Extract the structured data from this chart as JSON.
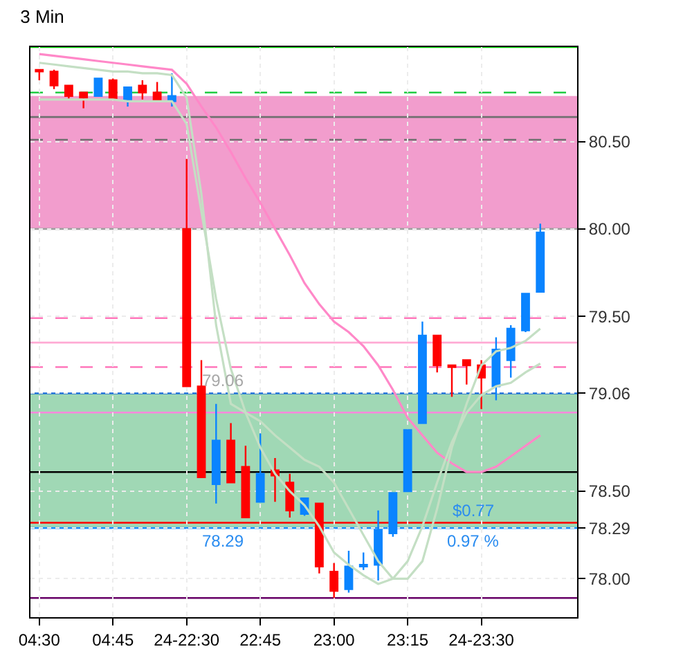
{
  "chart_data": {
    "type": "candlestick",
    "title": "3 Min",
    "categories": [
      "04:30",
      null,
      null,
      null,
      null,
      "04:45",
      null,
      null,
      null,
      null,
      "24-22:30",
      null,
      null,
      null,
      null,
      "22:45",
      null,
      null,
      null,
      null,
      "23:00",
      null,
      null,
      null,
      null,
      "23:15",
      null,
      null,
      null,
      null,
      "24-23:30",
      null,
      null,
      null,
      null
    ],
    "series": [
      {
        "type": "line",
        "color": "#ff88c8",
        "values": [
          81.0,
          80.99,
          80.98,
          80.97,
          80.96,
          80.95,
          80.94,
          80.93,
          80.92,
          80.91,
          80.83,
          80.7,
          80.58,
          80.44,
          80.29,
          80.15,
          80.0,
          79.85,
          79.69,
          79.57,
          79.47,
          79.41,
          79.33,
          79.22,
          79.08,
          78.92,
          78.82,
          78.72,
          78.66,
          78.61,
          78.61,
          78.64,
          78.7,
          78.76,
          78.82
        ]
      },
      {
        "type": "line",
        "color": "#c4dfc4",
        "values": [
          80.95,
          80.94,
          80.93,
          80.92,
          80.91,
          80.9,
          80.9,
          80.89,
          80.89,
          80.88,
          80.75,
          80.2,
          79.45,
          79.0,
          78.95,
          78.9,
          78.82,
          78.75,
          78.68,
          78.64,
          78.55,
          78.4,
          78.25,
          78.1,
          78.0,
          78.0,
          78.1,
          78.4,
          78.75,
          79.0,
          79.22,
          79.3,
          79.32,
          79.36,
          79.43
        ]
      },
      {
        "type": "line",
        "color": "#c4dfc4",
        "values": [
          80.74,
          80.74,
          80.74,
          80.74,
          80.74,
          80.74,
          80.73,
          80.73,
          80.73,
          80.73,
          80.6,
          80.1,
          79.6,
          79.2,
          78.95,
          78.75,
          78.6,
          78.5,
          78.42,
          78.3,
          78.15,
          78.08,
          78.02,
          77.97,
          78.0,
          78.1,
          78.3,
          78.55,
          78.78,
          78.95,
          79.05,
          79.1,
          79.12,
          79.18,
          79.23
        ]
      },
      {
        "colors": [
          "#ff0000",
          "#ff0000",
          "#ff0000",
          "#ff0000",
          "#0a84ff",
          "#ff0000",
          "#0a84ff",
          "#ff0000",
          "#ff0000",
          "#0a84ff",
          "#ff0000",
          "#ff0000",
          "#0a84ff",
          "#ff0000",
          "#ff0000",
          "#0a84ff",
          "#ff0000",
          "#ff0000",
          "#0a84ff",
          "#ff0000",
          "#ff0000",
          "#0a84ff",
          "#0a84ff",
          "#0a84ff",
          "#0a84ff",
          "#0a84ff",
          "#0a84ff",
          "#ff0000",
          "#ff0000",
          "#ff0000",
          "#ff0000",
          "#0a84ff",
          "#0a84ff",
          "#0a84ff",
          "#0a84ff"
        ],
        "ohlc": [
          [
            80.91,
            80.91,
            80.85,
            80.9
          ],
          [
            80.9,
            80.91,
            80.8,
            80.82
          ],
          [
            80.82,
            80.82,
            80.74,
            80.76
          ],
          [
            80.78,
            80.78,
            80.69,
            80.75
          ],
          [
            80.76,
            80.86,
            80.76,
            80.86
          ],
          [
            80.85,
            80.86,
            80.74,
            80.74
          ],
          [
            80.74,
            80.81,
            80.7,
            80.81
          ],
          [
            80.82,
            80.85,
            80.74,
            80.78
          ],
          [
            80.78,
            80.84,
            80.73,
            80.74
          ],
          [
            80.73,
            80.89,
            80.7,
            80.76
          ],
          [
            80.0,
            80.4,
            79.1,
            79.1
          ],
          [
            79.1,
            79.25,
            78.58,
            78.58
          ],
          [
            78.54,
            79.0,
            78.43,
            78.79
          ],
          [
            78.79,
            78.89,
            78.55,
            78.55
          ],
          [
            78.64,
            78.76,
            78.35,
            78.35
          ],
          [
            78.44,
            78.83,
            78.44,
            78.6
          ],
          [
            78.62,
            78.69,
            78.44,
            78.59
          ],
          [
            78.55,
            78.6,
            78.35,
            78.39
          ],
          [
            78.37,
            78.46,
            78.36,
            78.46
          ],
          [
            78.43,
            78.43,
            78.03,
            78.07
          ],
          [
            78.04,
            78.09,
            77.89,
            77.93
          ],
          [
            77.94,
            78.16,
            77.92,
            78.07
          ],
          [
            78.07,
            78.15,
            78.05,
            78.08
          ],
          [
            78.08,
            78.39,
            77.99,
            78.28
          ],
          [
            78.26,
            78.49,
            78.24,
            78.49
          ],
          [
            78.5,
            78.85,
            78.5,
            78.85
          ],
          [
            78.89,
            79.47,
            78.89,
            79.39
          ],
          [
            79.39,
            79.39,
            79.18,
            79.22
          ],
          [
            79.22,
            79.22,
            79.04,
            79.21
          ],
          [
            79.25,
            79.25,
            79.11,
            79.22
          ],
          [
            79.22,
            79.25,
            78.97,
            79.15
          ],
          [
            79.1,
            79.38,
            79.02,
            79.31
          ],
          [
            79.25,
            79.45,
            79.15,
            79.43
          ],
          [
            79.42,
            79.63,
            79.41,
            79.63
          ],
          [
            79.64,
            80.03,
            79.64,
            79.98
          ]
        ]
      }
    ],
    "ylim": [
      77.78,
      81.04
    ],
    "yticks": [
      {
        "value": 78.0,
        "label": "78.00"
      },
      {
        "value": 78.29,
        "label": "78.29"
      },
      {
        "value": 78.5,
        "label": "78.50"
      },
      {
        "value": 79.06,
        "label": "79.06"
      },
      {
        "value": 79.5,
        "label": "79.50"
      },
      {
        "value": 80.0,
        "label": "80.00"
      },
      {
        "value": 80.5,
        "label": "80.50"
      }
    ],
    "bands": [
      {
        "axis": "y",
        "from": 80.0,
        "to": 80.76,
        "color": "#f08cc4"
      },
      {
        "axis": "y",
        "from": 78.29,
        "to": 79.06,
        "color": "#8fd1a8"
      }
    ],
    "ref_lines": [
      {
        "axis": "y",
        "value": 81.04,
        "color": "#00dd00",
        "line_style": "solid"
      },
      {
        "axis": "y",
        "value": 80.78,
        "color": "#22cc44",
        "line_style": "dashed"
      },
      {
        "axis": "y",
        "value": 80.64,
        "color": "#707070",
        "line_style": "solid"
      },
      {
        "axis": "y",
        "value": 80.51,
        "color": "#707070",
        "line_style": "dashed"
      },
      {
        "axis": "y",
        "value": 80.0,
        "color": "#a0a0a0",
        "line_style": "solid"
      },
      {
        "axis": "y",
        "value": 79.49,
        "color": "#ff77bb",
        "line_style": "dashed"
      },
      {
        "axis": "y",
        "value": 79.35,
        "color": "#ffaad4",
        "line_style": "solid"
      },
      {
        "axis": "y",
        "value": 79.21,
        "color": "#ff77bb",
        "line_style": "dashed"
      },
      {
        "axis": "y",
        "value": 79.06,
        "color": "#1e6fd9",
        "line_style": "solid"
      },
      {
        "axis": "y",
        "value": 78.95,
        "color": "#ff88dd",
        "line_style": "solid"
      },
      {
        "axis": "y",
        "value": 78.61,
        "color": "#000000",
        "line_style": "solid"
      },
      {
        "axis": "y",
        "value": 78.32,
        "color": "#ff0000",
        "line_style": "solid"
      },
      {
        "axis": "y",
        "value": 78.29,
        "color": "#1e90ff",
        "line_style": "solid"
      },
      {
        "axis": "y",
        "value": 77.89,
        "color": "#660066",
        "line_style": "solid"
      }
    ],
    "annotations": [
      {
        "text": "79.06",
        "y": 79.06
      },
      {
        "text": "78.29",
        "y": 78.29
      },
      {
        "text": "$0.77",
        "y": 78.32
      },
      {
        "text": "0.97 %",
        "y": 78.29
      }
    ],
    "grid": true
  }
}
